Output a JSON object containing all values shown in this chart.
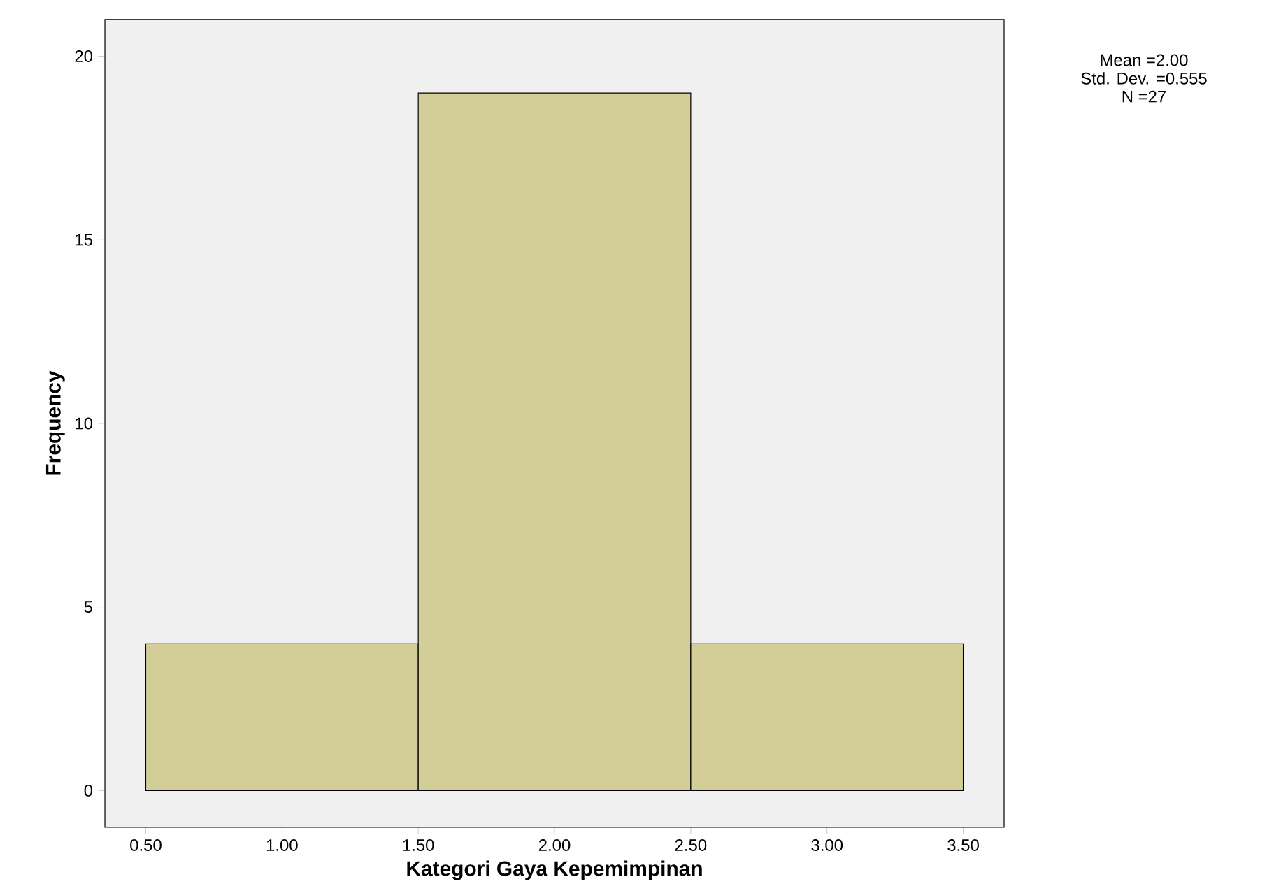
{
  "chart_data": {
    "type": "histogram",
    "xlabel": "Kategori Gaya Kepemimpinan",
    "ylabel": "Frequency",
    "bins": [
      0.5,
      1.5,
      2.5,
      3.5
    ],
    "values": [
      4,
      19,
      4
    ],
    "color": "#d3ce98",
    "xlim": [
      0.35,
      3.65
    ],
    "ylim": [
      -1,
      21
    ],
    "xticks": [
      {
        "value": 0.5,
        "label": "0.50"
      },
      {
        "value": 1.0,
        "label": "1.00"
      },
      {
        "value": 1.5,
        "label": "1.50"
      },
      {
        "value": 2.0,
        "label": "2.00"
      },
      {
        "value": 2.5,
        "label": "2.50"
      },
      {
        "value": 3.0,
        "label": "3.00"
      },
      {
        "value": 3.5,
        "label": "3.50"
      }
    ],
    "yticks": [
      0,
      5,
      10,
      15,
      20
    ],
    "annotations": [
      "Mean =2.00",
      "Std. Dev. =0.555",
      "N =27"
    ]
  }
}
